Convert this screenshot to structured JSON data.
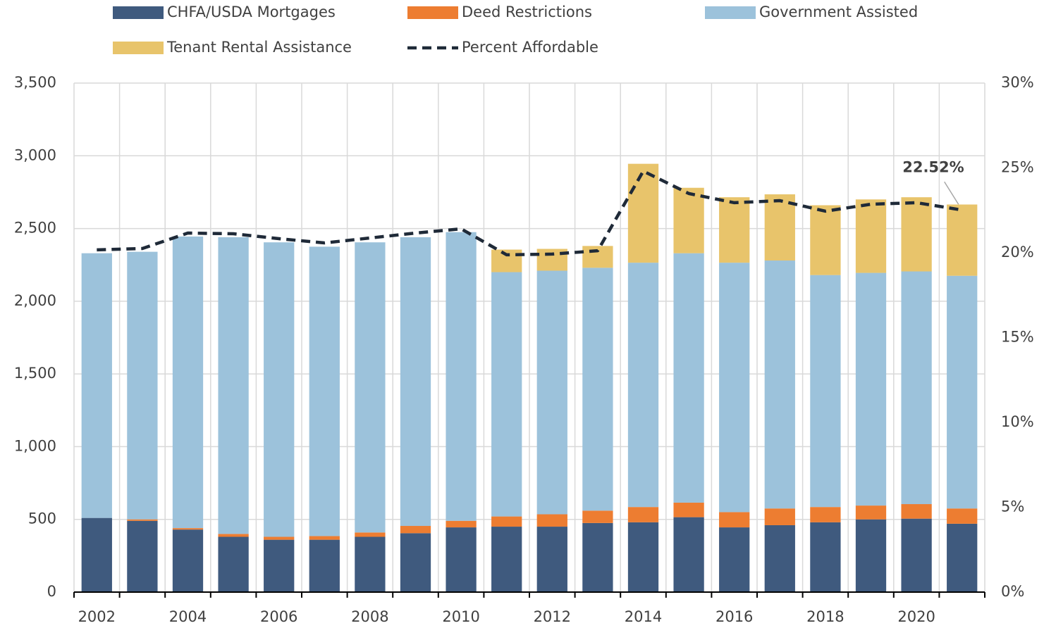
{
  "chart_data": {
    "type": "bar",
    "stacked": true,
    "legend": "top",
    "grid": true,
    "categories": [
      "2002",
      null,
      "2004",
      null,
      "2006",
      null,
      "2008",
      null,
      "2010",
      null,
      "2012",
      null,
      "2014",
      null,
      "2016",
      null,
      "2018",
      null,
      "2020",
      null
    ],
    "ylim": [
      0,
      3500
    ],
    "yticks": [
      0,
      500,
      {
        "value": 1000,
        "label": "1,000"
      },
      {
        "value": 1500,
        "label": "1,500"
      },
      {
        "value": 2000,
        "label": "2,000"
      },
      {
        "value": 2500,
        "label": "2,500"
      },
      {
        "value": 3000,
        "label": "3,000"
      },
      {
        "value": 3500,
        "label": "3,500"
      }
    ],
    "y2lim": [
      0,
      30
    ],
    "y2ticks": [
      {
        "value": 0,
        "label": "0%"
      },
      {
        "value": 5,
        "label": "5%"
      },
      {
        "value": 10,
        "label": "10%"
      },
      {
        "value": 15,
        "label": "15%"
      },
      {
        "value": 20,
        "label": "20%"
      },
      {
        "value": 25,
        "label": "25%"
      },
      {
        "value": 30,
        "label": "30%"
      }
    ],
    "series": [
      {
        "name": "CHFA/USDA Mortgages",
        "color": "#3f5a7e",
        "values": [
          510,
          490,
          430,
          380,
          360,
          360,
          380,
          405,
          445,
          450,
          450,
          475,
          480,
          515,
          445,
          460,
          480,
          500,
          505,
          470
        ]
      },
      {
        "name": "Deed Restrictions",
        "color": "#ed7d31",
        "values": [
          0,
          10,
          10,
          20,
          20,
          25,
          30,
          50,
          45,
          70,
          85,
          85,
          105,
          100,
          105,
          115,
          105,
          95,
          100,
          105
        ]
      },
      {
        "name": "Government Assisted",
        "color": "#9cc2db",
        "values": [
          1820,
          1840,
          2005,
          2040,
          2025,
          1990,
          1995,
          1985,
          1985,
          1680,
          1675,
          1670,
          1680,
          1715,
          1715,
          1705,
          1595,
          1600,
          1600,
          1600
        ]
      },
      {
        "name": "Tenant Rental Assistance",
        "color": "#e8c46b",
        "values": [
          0,
          0,
          0,
          0,
          0,
          0,
          0,
          0,
          0,
          155,
          150,
          150,
          680,
          450,
          450,
          455,
          480,
          505,
          510,
          490
        ]
      },
      {
        "name": "Percent Affordable",
        "color": "#1f2a38",
        "type": "line",
        "axis": "y2",
        "dashed": true,
        "values": [
          20.17,
          20.25,
          21.16,
          21.12,
          20.83,
          20.58,
          20.87,
          21.16,
          21.41,
          19.88,
          19.92,
          20.12,
          24.81,
          23.49,
          22.95,
          23.07,
          22.45,
          22.86,
          22.95,
          22.52
        ],
        "value_labels": [
          null,
          null,
          null,
          null,
          null,
          null,
          null,
          null,
          null,
          null,
          null,
          null,
          null,
          null,
          null,
          null,
          null,
          null,
          null,
          "22.52%"
        ]
      }
    ]
  }
}
